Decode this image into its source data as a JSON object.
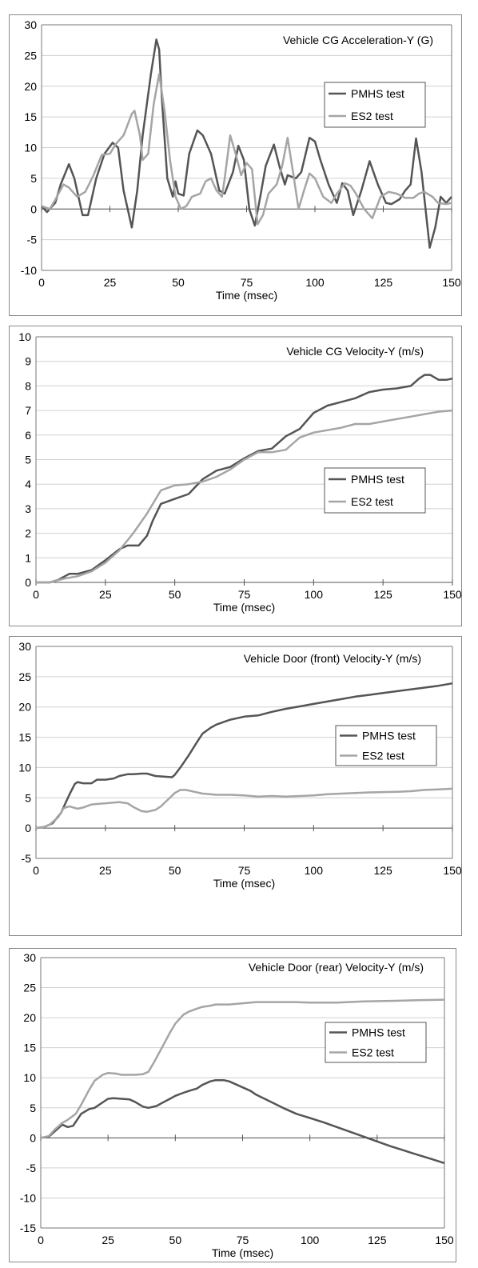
{
  "chart_data": [
    {
      "type": "line",
      "title": "Vehicle CG Acceleration-Y (G)",
      "xlabel": "Time (msec)",
      "ylabel": "",
      "xlim": [
        0,
        150
      ],
      "ylim": [
        -10,
        30
      ],
      "xticks": [
        0,
        25,
        50,
        75,
        100,
        125,
        150
      ],
      "yticks": [
        -10,
        -5,
        0,
        5,
        10,
        15,
        20,
        25,
        30
      ],
      "grid": "horizontal",
      "legend": "right",
      "series": [
        {
          "name": "PMHS test",
          "color": "#555555",
          "x": [
            0,
            2,
            5,
            7,
            10,
            12,
            15,
            17,
            20,
            23,
            26,
            28,
            30,
            33,
            35,
            37,
            40,
            42,
            43,
            44,
            46,
            48,
            49,
            50,
            52,
            54,
            57,
            59,
            62,
            65,
            67,
            70,
            72,
            74,
            76,
            78,
            80,
            82,
            85,
            87,
            89,
            90,
            93,
            95,
            98,
            100,
            102,
            105,
            108,
            110,
            112,
            114,
            117,
            120,
            123,
            126,
            128,
            131,
            133,
            135,
            137,
            139,
            142,
            144,
            146,
            148,
            150
          ],
          "y": [
            0.5,
            -0.5,
            1,
            4,
            7.3,
            5,
            -1,
            -1,
            5,
            9,
            10.8,
            10,
            3,
            -3,
            3,
            12,
            22,
            27.6,
            26,
            18,
            5,
            2,
            4.5,
            2.5,
            2.2,
            9,
            12.8,
            12,
            9,
            3,
            2.5,
            6,
            10.3,
            8,
            0,
            -2.7,
            2,
            7,
            10.5,
            7,
            4,
            5.5,
            5,
            6,
            11.6,
            11,
            8,
            4,
            1,
            4.2,
            3,
            -1,
            3,
            7.8,
            4,
            1,
            0.8,
            1.6,
            3,
            4,
            11.5,
            6,
            -6.3,
            -3,
            2,
            1,
            2
          ]
        },
        {
          "name": "ES2 test",
          "color": "#a5a5a5",
          "x": [
            0,
            3,
            5,
            8,
            10,
            13,
            16,
            19,
            22,
            25,
            27,
            30,
            33,
            34,
            36,
            37,
            39,
            41,
            43,
            45,
            47,
            49,
            51,
            53,
            55,
            58,
            60,
            62,
            64,
            66,
            67,
            69,
            71,
            73,
            75,
            77,
            79,
            81,
            83,
            86,
            88,
            90,
            92,
            94,
            96,
            98,
            100,
            103,
            106,
            108,
            111,
            113,
            115,
            118,
            121,
            124,
            127,
            130,
            133,
            136,
            138,
            140,
            143,
            145,
            148,
            150
          ],
          "y": [
            0.5,
            0,
            1.5,
            4,
            3.5,
            2,
            2.8,
            5.5,
            8.8,
            9,
            10.5,
            12,
            15.5,
            16,
            12,
            8,
            9,
            17,
            22,
            16,
            8,
            2,
            0,
            0.5,
            2,
            2.5,
            4.5,
            5,
            3,
            2,
            5,
            12,
            9,
            5.5,
            7.5,
            6.5,
            -2.5,
            -1,
            2.5,
            4,
            7,
            11.6,
            6,
            0,
            3,
            5.8,
            5,
            2,
            1,
            2.5,
            4.2,
            3.8,
            2.5,
            0,
            -1.5,
            2,
            2.8,
            2.5,
            1.8,
            1.8,
            2.5,
            2.8,
            2,
            1,
            0.8,
            1
          ]
        }
      ]
    },
    {
      "type": "line",
      "title": "Vehicle CG Velocity-Y (m/s)",
      "xlabel": "Time (msec)",
      "ylabel": "",
      "xlim": [
        0,
        150
      ],
      "ylim": [
        0,
        10
      ],
      "xticks": [
        0,
        25,
        50,
        75,
        100,
        125,
        150
      ],
      "yticks": [
        0,
        1,
        2,
        3,
        4,
        5,
        6,
        7,
        8,
        9,
        10
      ],
      "grid": "horizontal",
      "legend": "right",
      "series": [
        {
          "name": "PMHS test",
          "color": "#555555",
          "x": [
            0,
            5,
            8,
            12,
            15,
            20,
            25,
            30,
            33,
            37,
            40,
            42,
            45,
            50,
            55,
            60,
            65,
            70,
            75,
            80,
            85,
            90,
            95,
            100,
            105,
            110,
            115,
            120,
            125,
            130,
            135,
            138,
            140,
            142,
            145,
            148,
            150
          ],
          "y": [
            0,
            0,
            0.1,
            0.35,
            0.35,
            0.5,
            0.9,
            1.35,
            1.5,
            1.5,
            1.9,
            2.5,
            3.2,
            3.4,
            3.6,
            4.2,
            4.55,
            4.7,
            5.05,
            5.35,
            5.45,
            5.95,
            6.25,
            6.9,
            7.2,
            7.35,
            7.5,
            7.75,
            7.85,
            7.9,
            8.0,
            8.3,
            8.45,
            8.45,
            8.25,
            8.25,
            8.3
          ]
        },
        {
          "name": "ES2 test",
          "color": "#a5a5a5",
          "x": [
            0,
            5,
            10,
            15,
            20,
            25,
            30,
            35,
            40,
            45,
            50,
            55,
            60,
            65,
            70,
            75,
            80,
            85,
            90,
            93,
            95,
            100,
            105,
            110,
            115,
            120,
            125,
            130,
            135,
            140,
            145,
            150
          ],
          "y": [
            0,
            0,
            0.15,
            0.25,
            0.45,
            0.8,
            1.3,
            2.0,
            2.8,
            3.75,
            3.95,
            4.0,
            4.1,
            4.3,
            4.6,
            5.0,
            5.3,
            5.3,
            5.4,
            5.7,
            5.9,
            6.1,
            6.2,
            6.3,
            6.45,
            6.45,
            6.55,
            6.65,
            6.75,
            6.85,
            6.95,
            7.0
          ]
        }
      ]
    },
    {
      "type": "line",
      "title": "Vehicle Door (front) Velocity-Y (m/s)",
      "xlabel": "Time (msec)",
      "ylabel": "",
      "xlim": [
        0,
        150
      ],
      "ylim": [
        -5,
        30
      ],
      "xticks": [
        0,
        25,
        50,
        75,
        100,
        125,
        150
      ],
      "yticks": [
        -5,
        0,
        5,
        10,
        15,
        20,
        25,
        30
      ],
      "grid": "horizontal",
      "legend": "right",
      "series": [
        {
          "name": "PMHS test",
          "color": "#555555",
          "x": [
            0,
            3,
            6,
            9,
            12,
            14,
            15,
            17,
            20,
            22,
            25,
            28,
            30,
            33,
            35,
            38,
            40,
            43,
            46,
            49,
            50,
            52,
            55,
            58,
            60,
            63,
            65,
            70,
            75,
            80,
            85,
            90,
            95,
            100,
            105,
            110,
            115,
            120,
            125,
            130,
            135,
            140,
            145,
            150
          ],
          "y": [
            0,
            0.2,
            0.8,
            2.5,
            5.5,
            7.3,
            7.6,
            7.4,
            7.4,
            8.0,
            8.0,
            8.2,
            8.6,
            8.9,
            8.9,
            9.0,
            9.0,
            8.6,
            8.5,
            8.4,
            8.8,
            10,
            12,
            14.2,
            15.6,
            16.6,
            17.1,
            17.9,
            18.4,
            18.6,
            19.2,
            19.7,
            20.1,
            20.5,
            20.9,
            21.3,
            21.7,
            22.0,
            22.3,
            22.6,
            22.9,
            23.2,
            23.5,
            23.9
          ]
        },
        {
          "name": "ES2 test",
          "color": "#a5a5a5",
          "x": [
            0,
            3,
            5,
            8,
            10,
            12,
            15,
            17,
            20,
            25,
            30,
            33,
            35,
            38,
            40,
            43,
            45,
            48,
            50,
            52,
            54,
            57,
            60,
            65,
            70,
            75,
            80,
            85,
            90,
            95,
            100,
            105,
            110,
            115,
            120,
            125,
            130,
            135,
            140,
            145,
            150
          ],
          "y": [
            0,
            0.2,
            0.6,
            1.8,
            3.3,
            3.6,
            3.2,
            3.4,
            3.9,
            4.1,
            4.3,
            4.1,
            3.5,
            2.8,
            2.7,
            3.0,
            3.6,
            4.9,
            5.8,
            6.3,
            6.3,
            6.0,
            5.7,
            5.5,
            5.5,
            5.4,
            5.2,
            5.3,
            5.2,
            5.3,
            5.4,
            5.6,
            5.7,
            5.8,
            5.9,
            5.95,
            6.0,
            6.1,
            6.3,
            6.4,
            6.5
          ]
        }
      ]
    },
    {
      "type": "line",
      "title": "Vehicle Door (rear) Velocity-Y (m/s)",
      "xlabel": "Time (msec)",
      "ylabel": "",
      "xlim": [
        0,
        150
      ],
      "ylim": [
        -15,
        30
      ],
      "xticks": [
        0,
        25,
        50,
        75,
        100,
        125,
        150
      ],
      "yticks": [
        -15,
        -10,
        -5,
        0,
        5,
        10,
        15,
        20,
        25,
        30
      ],
      "grid": "horizontal",
      "legend": "right",
      "series": [
        {
          "name": "PMHS test",
          "color": "#555555",
          "x": [
            0,
            3,
            5,
            8,
            10,
            12,
            15,
            18,
            20,
            23,
            25,
            27,
            30,
            33,
            35,
            38,
            40,
            43,
            45,
            48,
            50,
            53,
            55,
            58,
            60,
            63,
            65,
            68,
            70,
            73,
            75,
            78,
            80,
            85,
            90,
            95,
            100,
            105,
            110,
            115,
            120,
            125,
            130,
            135,
            140,
            145,
            150
          ],
          "y": [
            0,
            0.2,
            1.0,
            2.2,
            1.8,
            2.0,
            4.0,
            4.8,
            5.0,
            5.9,
            6.5,
            6.6,
            6.5,
            6.4,
            6.0,
            5.2,
            5.0,
            5.3,
            5.8,
            6.5,
            7.0,
            7.5,
            7.8,
            8.2,
            8.8,
            9.4,
            9.6,
            9.6,
            9.4,
            8.8,
            8.4,
            7.8,
            7.2,
            6.1,
            5.0,
            4.0,
            3.3,
            2.6,
            1.8,
            1.0,
            0.2,
            -0.6,
            -1.4,
            -2.1,
            -2.8,
            -3.5,
            -4.2
          ]
        },
        {
          "name": "ES2 test",
          "color": "#a5a5a5",
          "x": [
            0,
            3,
            5,
            8,
            10,
            13,
            15,
            18,
            20,
            23,
            25,
            28,
            30,
            35,
            38,
            40,
            42,
            45,
            48,
            50,
            53,
            55,
            58,
            60,
            63,
            65,
            70,
            75,
            80,
            85,
            90,
            95,
            100,
            110,
            120,
            130,
            140,
            150
          ],
          "y": [
            0,
            0.3,
            1.3,
            2.5,
            3.0,
            4.0,
            5.5,
            8.0,
            9.5,
            10.5,
            10.8,
            10.7,
            10.5,
            10.5,
            10.6,
            11.0,
            12.5,
            15.0,
            17.5,
            19.0,
            20.5,
            21.0,
            21.5,
            21.8,
            22.0,
            22.2,
            22.2,
            22.4,
            22.6,
            22.6,
            22.6,
            22.6,
            22.5,
            22.5,
            22.7,
            22.8,
            22.9,
            23.0
          ]
        }
      ]
    }
  ]
}
